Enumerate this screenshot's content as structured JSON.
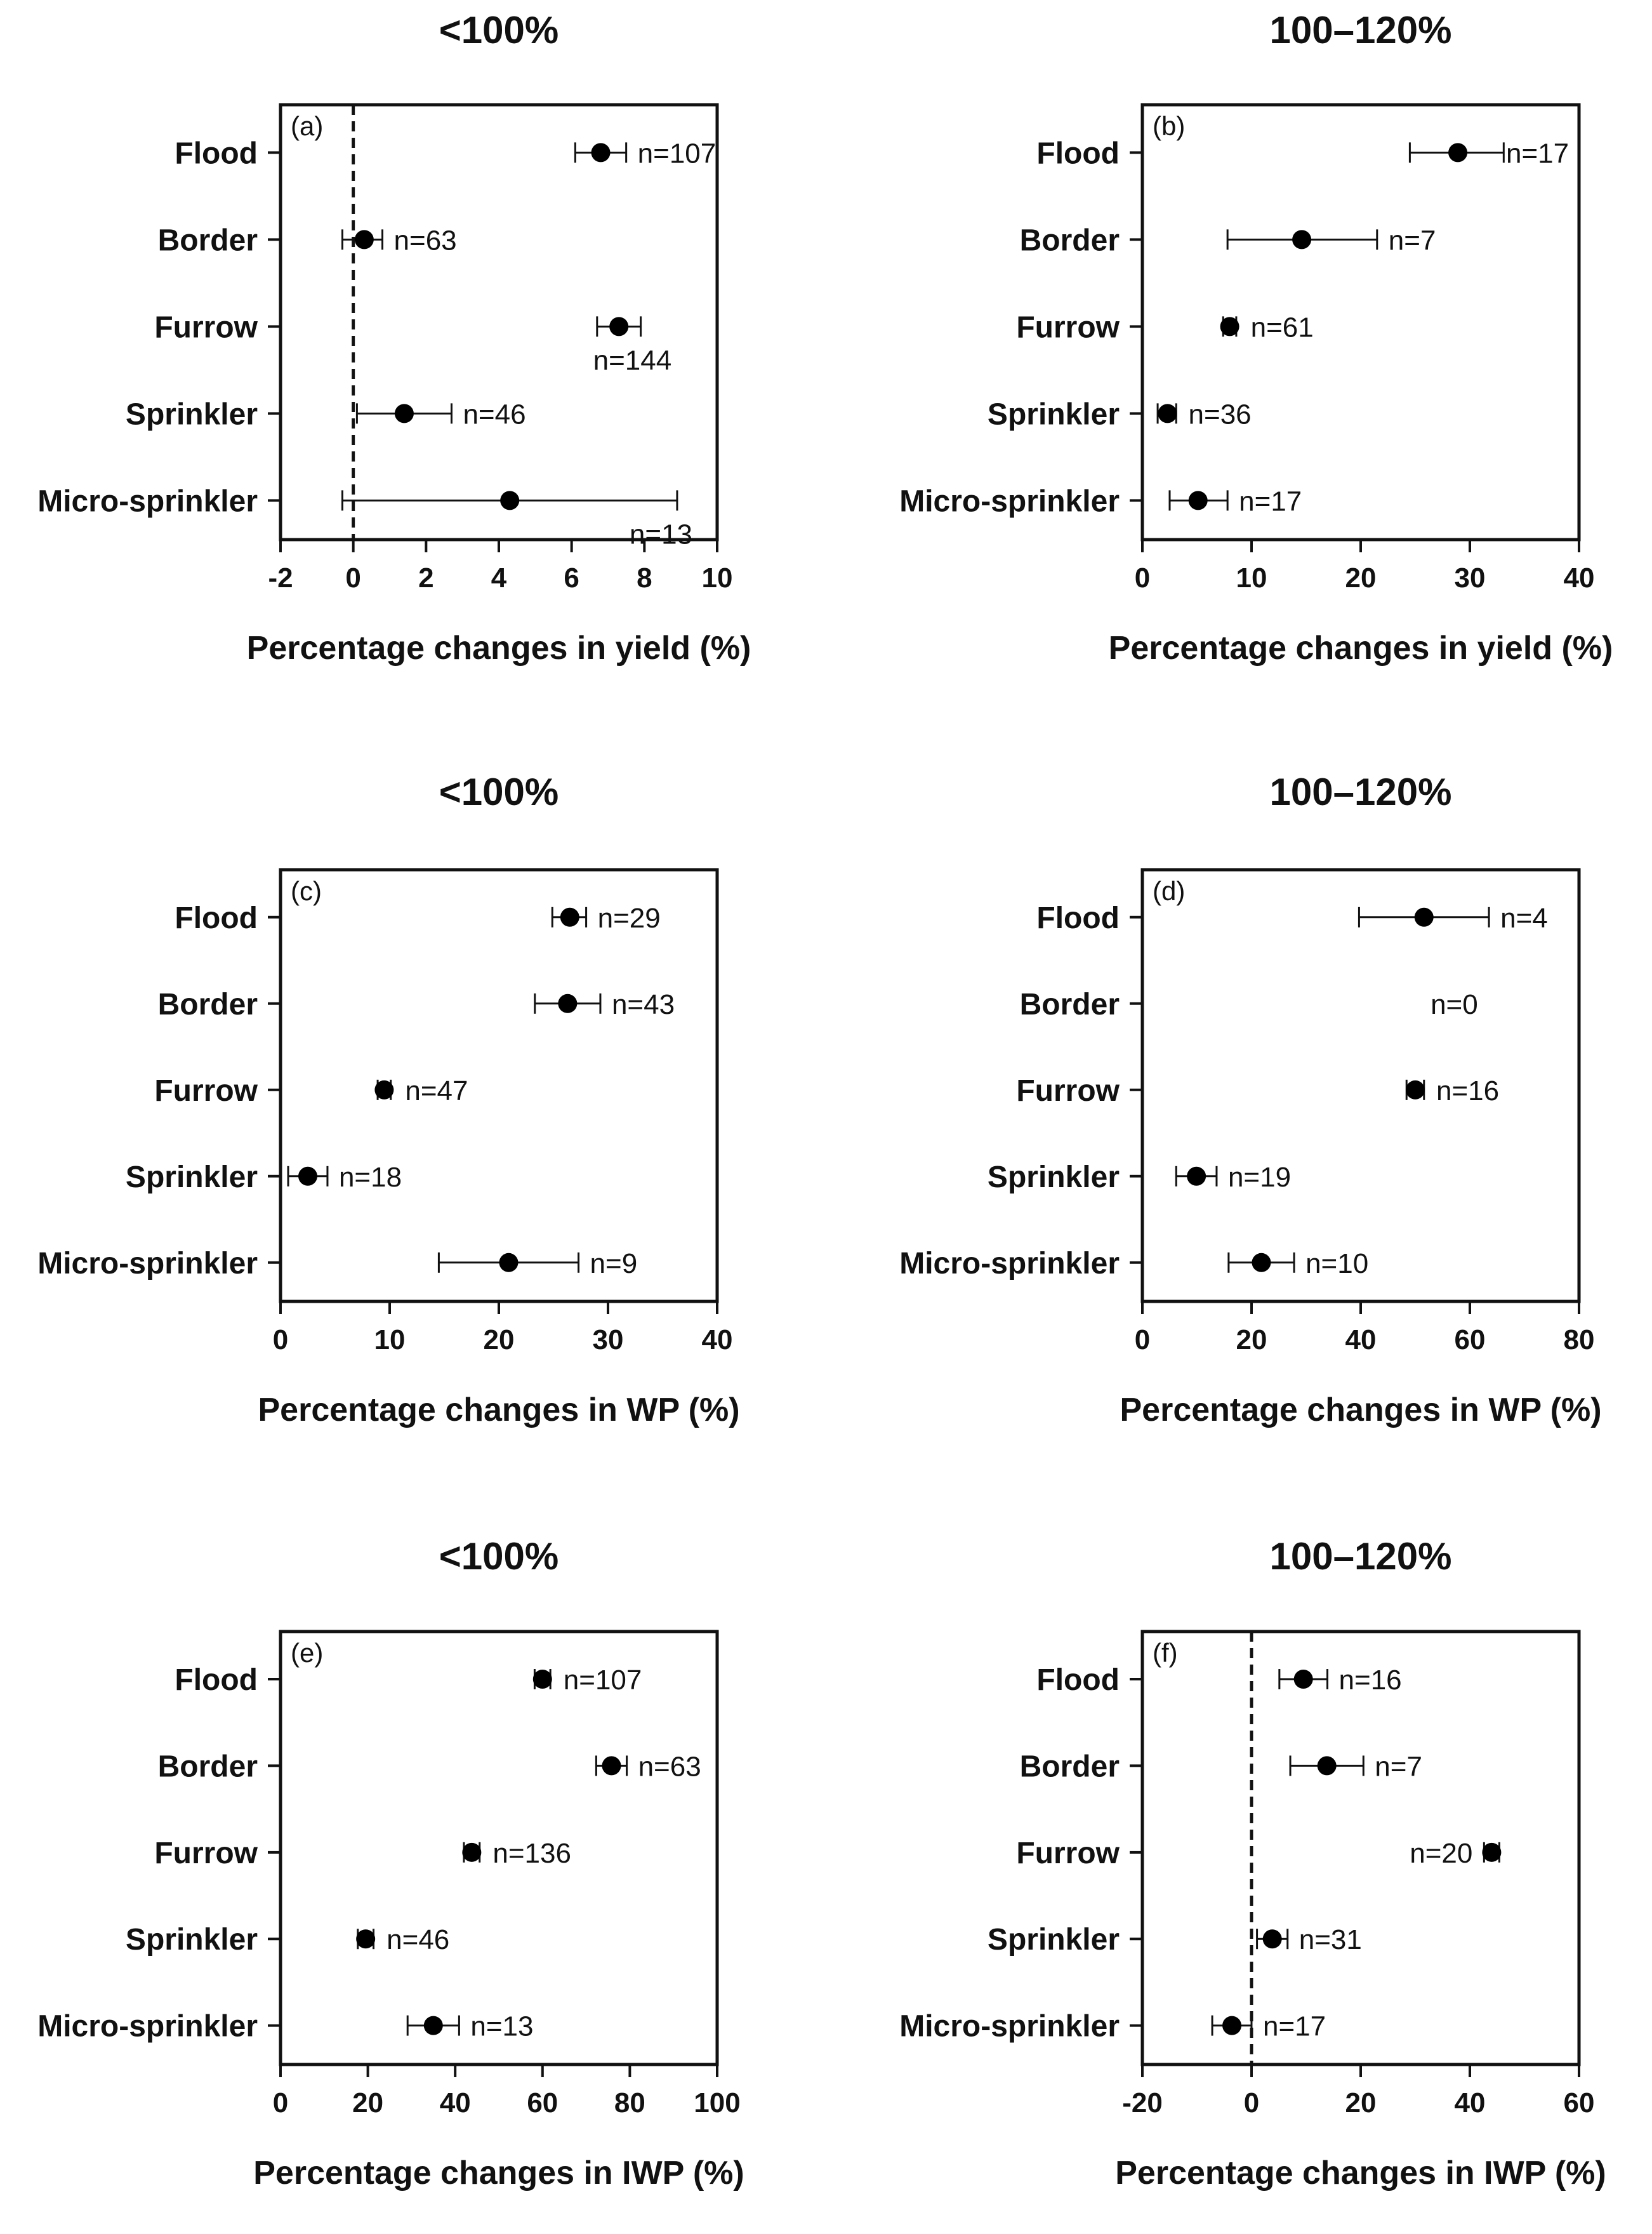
{
  "chart_data": [
    {
      "type": "scatter",
      "panel": "(a)",
      "title": "<100%",
      "xlabel": "Percentage changes in yield (%)",
      "ylabel": "",
      "xlim": [
        -2,
        10
      ],
      "xticks": [
        -2,
        0,
        2,
        4,
        6,
        8,
        10
      ],
      "xtick_labels": [
        "-2",
        "0",
        "2",
        "4",
        "6",
        "8",
        "10"
      ],
      "reference_line": 0,
      "categories": [
        "Flood",
        "Border",
        "Furrow",
        "Sprinkler",
        "Micro-sprinkler"
      ],
      "values": [
        6.8,
        0.3,
        7.3,
        1.4,
        4.3
      ],
      "ci_low": [
        6.1,
        -0.3,
        6.7,
        0.1,
        -0.3
      ],
      "ci_high": [
        7.5,
        0.8,
        7.9,
        2.7,
        8.9
      ],
      "n_labels": [
        "n=107",
        "n=63",
        "n=144",
        "n=46",
        "n=13"
      ],
      "n_label_offset": [
        "right",
        "right",
        "below",
        "right",
        "below"
      ]
    },
    {
      "type": "scatter",
      "panel": "(b)",
      "title": "100–120%",
      "xlabel": "Percentage changes in yield (%)",
      "ylabel": "",
      "xlim": [
        0,
        40
      ],
      "xticks": [
        0,
        10,
        20,
        30,
        40
      ],
      "xtick_labels": [
        "0",
        "10",
        "20",
        "30",
        "40"
      ],
      "reference_line": null,
      "categories": [
        "Flood",
        "Border",
        "Furrow",
        "Sprinkler",
        "Micro-sprinkler"
      ],
      "values": [
        28.9,
        14.6,
        8.0,
        2.3,
        5.1
      ],
      "ci_low": [
        24.5,
        7.8,
        7.4,
        1.4,
        2.5
      ],
      "ci_high": [
        33.1,
        21.5,
        8.6,
        3.1,
        7.8
      ],
      "n_labels": [
        "n=17",
        "n=7",
        "n=61",
        "n=36",
        "n=17"
      ],
      "n_label_offset": [
        "right",
        "right",
        "right",
        "right",
        "right"
      ]
    },
    {
      "type": "scatter",
      "panel": "(c)",
      "title": "<100%",
      "xlabel": "Percentage changes in WP (%)",
      "ylabel": "",
      "xlim": [
        0,
        40
      ],
      "xticks": [
        0,
        10,
        20,
        30,
        40
      ],
      "xtick_labels": [
        "0",
        "10",
        "20",
        "30",
        "40"
      ],
      "reference_line": null,
      "categories": [
        "Flood",
        "Border",
        "Furrow",
        "Sprinkler",
        "Micro-sprinkler"
      ],
      "values": [
        26.5,
        26.3,
        9.5,
        2.5,
        20.9
      ],
      "ci_low": [
        24.9,
        23.3,
        8.9,
        0.7,
        14.5
      ],
      "ci_high": [
        28.0,
        29.3,
        10.1,
        4.3,
        27.3
      ],
      "n_labels": [
        "n=29",
        "n=43",
        "n=47",
        "n=18",
        "n=9"
      ],
      "n_label_offset": [
        "right",
        "right",
        "right",
        "right",
        "right"
      ]
    },
    {
      "type": "scatter",
      "panel": "(d)",
      "title": "100–120%",
      "xlabel": "Percentage changes in WP (%)",
      "ylabel": "",
      "xlim": [
        0,
        80
      ],
      "xticks": [
        0,
        20,
        40,
        60,
        80
      ],
      "xtick_labels": [
        "0",
        "20",
        "40",
        "60",
        "80"
      ],
      "reference_line": null,
      "categories": [
        "Flood",
        "Border",
        "Furrow",
        "Sprinkler",
        "Micro-sprinkler"
      ],
      "values": [
        51.6,
        null,
        50.0,
        9.9,
        21.8
      ],
      "ci_low": [
        39.7,
        null,
        48.4,
        6.2,
        15.8
      ],
      "ci_high": [
        63.5,
        null,
        51.6,
        13.6,
        27.8
      ],
      "n_labels": [
        "n=4",
        "n=0",
        "n=16",
        "n=19",
        "n=10"
      ],
      "n_label_offset": [
        "right",
        "right",
        "right",
        "right",
        "right"
      ]
    },
    {
      "type": "scatter",
      "panel": "(e)",
      "title": "<100%",
      "xlabel": "Percentage changes in IWP (%)",
      "ylabel": "",
      "xlim": [
        0,
        100
      ],
      "xticks": [
        0,
        20,
        40,
        60,
        80,
        100
      ],
      "xtick_labels": [
        "0",
        "20",
        "40",
        "60",
        "80",
        "100"
      ],
      "reference_line": null,
      "categories": [
        "Flood",
        "Border",
        "Furrow",
        "Sprinkler",
        "Micro-sprinkler"
      ],
      "values": [
        60.0,
        75.8,
        43.8,
        19.5,
        35.0
      ],
      "ci_low": [
        58.2,
        72.3,
        42.0,
        17.7,
        29.1
      ],
      "ci_high": [
        61.8,
        79.3,
        45.6,
        21.3,
        40.9
      ],
      "n_labels": [
        "n=107",
        "n=63",
        "n=136",
        "n=46",
        "n=13"
      ],
      "n_label_offset": [
        "right",
        "right",
        "right",
        "right",
        "right"
      ]
    },
    {
      "type": "scatter",
      "panel": "(f)",
      "title": "100–120%",
      "xlabel": "Percentage changes in IWP (%)",
      "ylabel": "",
      "xlim": [
        -20,
        60
      ],
      "xticks": [
        -20,
        0,
        20,
        40,
        60
      ],
      "xtick_labels": [
        "-20",
        "0",
        "20",
        "40",
        "60"
      ],
      "reference_line": 0,
      "categories": [
        "Flood",
        "Border",
        "Furrow",
        "Sprinkler",
        "Micro-sprinkler"
      ],
      "values": [
        9.5,
        13.8,
        44.0,
        3.8,
        -3.6
      ],
      "ci_low": [
        5.1,
        7.1,
        42.6,
        1.0,
        -7.2
      ],
      "ci_high": [
        13.9,
        20.5,
        45.4,
        6.6,
        0.0
      ],
      "n_labels": [
        "n=16",
        "n=7",
        "n=20",
        "n=31",
        "n=17"
      ],
      "n_label_offset": [
        "right",
        "right",
        "left",
        "right",
        "right"
      ]
    }
  ]
}
